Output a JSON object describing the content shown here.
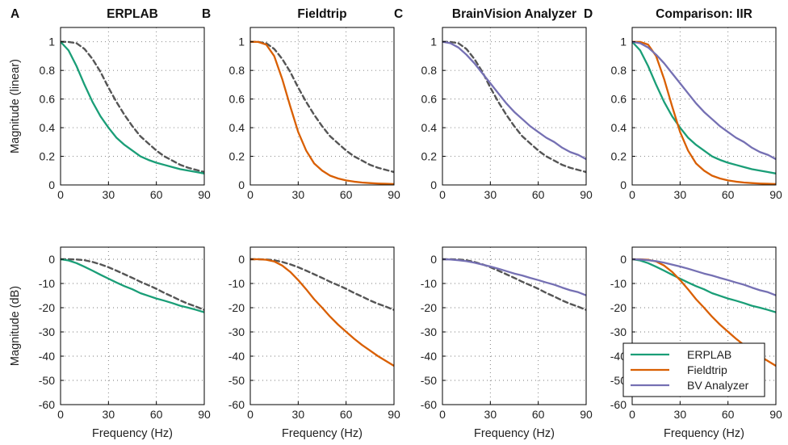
{
  "colors": {
    "ERPLAB": "#1a9e77",
    "Fieldtrip": "#d95f02",
    "BV Analyzer": "#7570b3",
    "reference": "#555555"
  },
  "legend": {
    "entries": [
      "ERPLAB",
      "Fieldtrip",
      "BV Analyzer"
    ]
  },
  "chart_data": [
    {
      "type": "line",
      "id": "A-top",
      "panel_letter": "A",
      "title": "ERPLAB",
      "xlabel": "",
      "ylabel": "Magnitude (linear)",
      "xlim": [
        0,
        90
      ],
      "ylim": [
        0,
        1.1
      ],
      "xticks": [
        0,
        30,
        60,
        90
      ],
      "yticks": [
        0,
        0.2,
        0.4,
        0.6,
        0.8,
        1
      ],
      "ytick_labels": [
        "0",
        "0.2",
        "0.4",
        "0.6",
        "0.8",
        "1"
      ],
      "grid": true,
      "x": [
        0,
        5,
        10,
        15,
        20,
        25,
        30,
        35,
        40,
        45,
        50,
        55,
        60,
        65,
        70,
        75,
        80,
        85,
        90
      ],
      "series": [
        {
          "color_key": "reference",
          "dashed": true,
          "values": [
            1.0,
            0.999,
            0.99,
            0.95,
            0.88,
            0.79,
            0.68,
            0.58,
            0.49,
            0.41,
            0.34,
            0.29,
            0.24,
            0.2,
            0.17,
            0.14,
            0.12,
            0.105,
            0.09
          ]
        },
        {
          "color_key": "ERPLAB",
          "dashed": false,
          "values": [
            1.0,
            0.94,
            0.83,
            0.7,
            0.58,
            0.48,
            0.4,
            0.33,
            0.28,
            0.24,
            0.2,
            0.175,
            0.155,
            0.14,
            0.125,
            0.11,
            0.1,
            0.09,
            0.08
          ]
        }
      ]
    },
    {
      "type": "line",
      "id": "B-top",
      "panel_letter": "B",
      "title": "Fieldtrip",
      "xlabel": "",
      "ylabel": "",
      "xlim": [
        0,
        90
      ],
      "ylim": [
        0,
        1.1
      ],
      "xticks": [
        0,
        30,
        60,
        90
      ],
      "yticks": [
        0,
        0.2,
        0.4,
        0.6,
        0.8,
        1
      ],
      "ytick_labels": [
        "0",
        "0.2",
        "0.4",
        "0.6",
        "0.8",
        "1"
      ],
      "grid": true,
      "x": [
        0,
        5,
        10,
        15,
        20,
        25,
        30,
        35,
        40,
        45,
        50,
        55,
        60,
        65,
        70,
        75,
        80,
        85,
        90
      ],
      "series": [
        {
          "color_key": "reference",
          "dashed": true,
          "values": [
            1.0,
            0.999,
            0.99,
            0.95,
            0.88,
            0.79,
            0.68,
            0.58,
            0.49,
            0.41,
            0.34,
            0.29,
            0.24,
            0.2,
            0.17,
            0.14,
            0.12,
            0.105,
            0.09
          ]
        },
        {
          "color_key": "Fieldtrip",
          "dashed": false,
          "values": [
            1.0,
            0.999,
            0.98,
            0.9,
            0.74,
            0.55,
            0.37,
            0.24,
            0.15,
            0.1,
            0.065,
            0.045,
            0.032,
            0.023,
            0.017,
            0.013,
            0.01,
            0.008,
            0.006
          ]
        }
      ]
    },
    {
      "type": "line",
      "id": "C-top",
      "panel_letter": "C",
      "title": "BrainVision Analyzer",
      "xlabel": "",
      "ylabel": "",
      "xlim": [
        0,
        90
      ],
      "ylim": [
        0,
        1.1
      ],
      "xticks": [
        0,
        30,
        60,
        90
      ],
      "yticks": [
        0,
        0.2,
        0.4,
        0.6,
        0.8,
        1
      ],
      "ytick_labels": [
        "0",
        "0.2",
        "0.4",
        "0.6",
        "0.8",
        "1"
      ],
      "grid": true,
      "x": [
        0,
        5,
        10,
        15,
        20,
        25,
        30,
        35,
        40,
        45,
        50,
        55,
        60,
        65,
        70,
        75,
        80,
        85,
        90
      ],
      "series": [
        {
          "color_key": "reference",
          "dashed": true,
          "values": [
            1.0,
            0.999,
            0.99,
            0.95,
            0.88,
            0.79,
            0.68,
            0.58,
            0.49,
            0.41,
            0.34,
            0.29,
            0.24,
            0.2,
            0.17,
            0.14,
            0.12,
            0.105,
            0.09
          ]
        },
        {
          "color_key": "BV Analyzer",
          "dashed": false,
          "values": [
            1.0,
            0.99,
            0.96,
            0.91,
            0.85,
            0.78,
            0.71,
            0.64,
            0.57,
            0.51,
            0.46,
            0.41,
            0.37,
            0.33,
            0.3,
            0.26,
            0.23,
            0.21,
            0.18
          ]
        }
      ]
    },
    {
      "type": "line",
      "id": "D-top",
      "panel_letter": "D",
      "title": "Comparison: IIR",
      "xlabel": "",
      "ylabel": "",
      "xlim": [
        0,
        90
      ],
      "ylim": [
        0,
        1.1
      ],
      "xticks": [
        0,
        30,
        60,
        90
      ],
      "yticks": [
        0,
        0.2,
        0.4,
        0.6,
        0.8,
        1
      ],
      "ytick_labels": [
        "0",
        "0.2",
        "0.4",
        "0.6",
        "0.8",
        "1"
      ],
      "grid": true,
      "x": [
        0,
        5,
        10,
        15,
        20,
        25,
        30,
        35,
        40,
        45,
        50,
        55,
        60,
        65,
        70,
        75,
        80,
        85,
        90
      ],
      "series": [
        {
          "color_key": "ERPLAB",
          "dashed": false,
          "values": [
            1.0,
            0.94,
            0.83,
            0.7,
            0.58,
            0.48,
            0.4,
            0.33,
            0.28,
            0.24,
            0.2,
            0.175,
            0.155,
            0.14,
            0.125,
            0.11,
            0.1,
            0.09,
            0.08
          ]
        },
        {
          "color_key": "Fieldtrip",
          "dashed": false,
          "values": [
            1.0,
            0.999,
            0.98,
            0.9,
            0.74,
            0.55,
            0.37,
            0.24,
            0.15,
            0.1,
            0.065,
            0.045,
            0.032,
            0.023,
            0.017,
            0.013,
            0.01,
            0.008,
            0.006
          ]
        },
        {
          "color_key": "BV Analyzer",
          "dashed": false,
          "values": [
            1.0,
            0.99,
            0.96,
            0.91,
            0.85,
            0.78,
            0.71,
            0.64,
            0.57,
            0.51,
            0.46,
            0.41,
            0.37,
            0.33,
            0.3,
            0.26,
            0.23,
            0.21,
            0.18
          ]
        }
      ]
    },
    {
      "type": "line",
      "id": "A-bottom",
      "panel_letter": "",
      "title": "",
      "xlabel": "Frequency (Hz)",
      "ylabel": "Magnitude (dB)",
      "xlim": [
        0,
        90
      ],
      "ylim": [
        -60,
        5
      ],
      "xticks": [
        0,
        30,
        60,
        90
      ],
      "yticks": [
        0,
        -10,
        -20,
        -30,
        -40,
        -50,
        -60
      ],
      "ytick_labels": [
        "0",
        "-10",
        "-20",
        "-30",
        "-40",
        "-50",
        "-60"
      ],
      "grid": true,
      "x": [
        0,
        5,
        10,
        15,
        20,
        25,
        30,
        35,
        40,
        45,
        50,
        55,
        60,
        65,
        70,
        75,
        80,
        85,
        90
      ],
      "series": [
        {
          "color_key": "reference",
          "dashed": true,
          "values": [
            0,
            0,
            -0.1,
            -0.4,
            -1.1,
            -2.1,
            -3.3,
            -4.7,
            -6.2,
            -7.7,
            -9.3,
            -10.7,
            -12.2,
            -13.9,
            -15.4,
            -17,
            -18.4,
            -19.6,
            -20.9
          ]
        },
        {
          "color_key": "ERPLAB",
          "dashed": false,
          "values": [
            0,
            -0.5,
            -1.6,
            -3.1,
            -4.7,
            -6.4,
            -8,
            -9.6,
            -11.1,
            -12.4,
            -14,
            -15.1,
            -16.2,
            -17.1,
            -18.1,
            -19.2,
            -20,
            -20.9,
            -21.9
          ]
        }
      ]
    },
    {
      "type": "line",
      "id": "B-bottom",
      "panel_letter": "",
      "title": "",
      "xlabel": "Frequency (Hz)",
      "ylabel": "",
      "xlim": [
        0,
        90
      ],
      "ylim": [
        -60,
        5
      ],
      "xticks": [
        0,
        30,
        60,
        90
      ],
      "yticks": [
        0,
        -10,
        -20,
        -30,
        -40,
        -50,
        -60
      ],
      "ytick_labels": [
        "0",
        "-10",
        "-20",
        "-30",
        "-40",
        "-50",
        "-60"
      ],
      "grid": true,
      "x": [
        0,
        5,
        10,
        15,
        20,
        25,
        30,
        35,
        40,
        45,
        50,
        55,
        60,
        65,
        70,
        75,
        80,
        85,
        90
      ],
      "series": [
        {
          "color_key": "reference",
          "dashed": true,
          "values": [
            0,
            0,
            -0.1,
            -0.4,
            -1.1,
            -2.1,
            -3.3,
            -4.7,
            -6.2,
            -7.7,
            -9.3,
            -10.7,
            -12.2,
            -13.9,
            -15.4,
            -17,
            -18.4,
            -19.6,
            -20.9
          ]
        },
        {
          "color_key": "Fieldtrip",
          "dashed": false,
          "values": [
            0,
            0,
            -0.2,
            -0.9,
            -2.6,
            -5.2,
            -8.6,
            -12.4,
            -16.5,
            -20,
            -23.7,
            -27,
            -29.9,
            -32.8,
            -35.4,
            -37.7,
            -40,
            -42,
            -44
          ]
        }
      ]
    },
    {
      "type": "line",
      "id": "C-bottom",
      "panel_letter": "",
      "title": "",
      "xlabel": "Frequency (Hz)",
      "ylabel": "",
      "xlim": [
        0,
        90
      ],
      "ylim": [
        -60,
        5
      ],
      "xticks": [
        0,
        30,
        60,
        90
      ],
      "yticks": [
        0,
        -10,
        -20,
        -30,
        -40,
        -50,
        -60
      ],
      "ytick_labels": [
        "0",
        "-10",
        "-20",
        "-30",
        "-40",
        "-50",
        "-60"
      ],
      "grid": true,
      "x": [
        0,
        5,
        10,
        15,
        20,
        25,
        30,
        35,
        40,
        45,
        50,
        55,
        60,
        65,
        70,
        75,
        80,
        85,
        90
      ],
      "series": [
        {
          "color_key": "reference",
          "dashed": true,
          "values": [
            0,
            0,
            -0.1,
            -0.4,
            -1.1,
            -2.1,
            -3.3,
            -4.7,
            -6.2,
            -7.7,
            -9.3,
            -10.7,
            -12.2,
            -13.9,
            -15.4,
            -17,
            -18.4,
            -19.6,
            -20.9
          ]
        },
        {
          "color_key": "BV Analyzer",
          "dashed": false,
          "values": [
            0,
            -0.1,
            -0.4,
            -0.8,
            -1.4,
            -2.2,
            -3,
            -3.9,
            -4.9,
            -5.9,
            -6.7,
            -7.7,
            -8.6,
            -9.6,
            -10.5,
            -11.7,
            -12.8,
            -13.6,
            -14.9
          ]
        }
      ]
    },
    {
      "type": "line",
      "id": "D-bottom",
      "panel_letter": "",
      "title": "",
      "xlabel": "Frequency (Hz)",
      "ylabel": "",
      "xlim": [
        0,
        90
      ],
      "ylim": [
        -60,
        5
      ],
      "xticks": [
        0,
        30,
        60,
        90
      ],
      "yticks": [
        0,
        -10,
        -20,
        -30,
        -40,
        -50,
        -60
      ],
      "ytick_labels": [
        "0",
        "-10",
        "-20",
        "-30",
        "-40",
        "-50",
        "-60"
      ],
      "grid": true,
      "legend": true,
      "legend_position": "bottom-left",
      "x": [
        0,
        5,
        10,
        15,
        20,
        25,
        30,
        35,
        40,
        45,
        50,
        55,
        60,
        65,
        70,
        75,
        80,
        85,
        90
      ],
      "series": [
        {
          "color_key": "ERPLAB",
          "name": "ERPLAB",
          "dashed": false,
          "values": [
            0,
            -0.5,
            -1.6,
            -3.1,
            -4.7,
            -6.4,
            -8,
            -9.6,
            -11.1,
            -12.4,
            -14,
            -15.1,
            -16.2,
            -17.1,
            -18.1,
            -19.2,
            -20,
            -20.9,
            -21.9
          ]
        },
        {
          "color_key": "Fieldtrip",
          "name": "Fieldtrip",
          "dashed": false,
          "values": [
            0,
            0,
            -0.2,
            -0.9,
            -2.6,
            -5.2,
            -8.6,
            -12.4,
            -16.5,
            -20,
            -23.7,
            -27,
            -29.9,
            -32.8,
            -35.4,
            -37.7,
            -40,
            -42,
            -44
          ]
        },
        {
          "color_key": "BV Analyzer",
          "name": "BV Analyzer",
          "dashed": false,
          "values": [
            0,
            -0.1,
            -0.4,
            -0.8,
            -1.4,
            -2.2,
            -3,
            -3.9,
            -4.9,
            -5.9,
            -6.7,
            -7.7,
            -8.6,
            -9.6,
            -10.5,
            -11.7,
            -12.8,
            -13.6,
            -14.9
          ]
        }
      ]
    }
  ]
}
